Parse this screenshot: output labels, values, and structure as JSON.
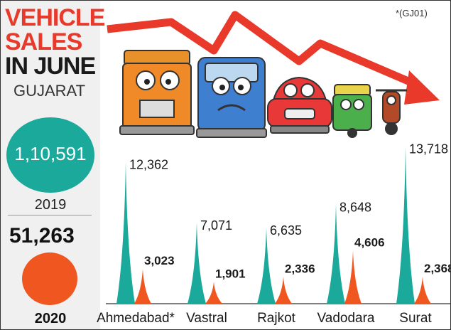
{
  "title": [
    "VEHICLE",
    "SALES",
    "IN JUNE"
  ],
  "region": "GUJARAT",
  "note": "*(GJ01)",
  "totals": {
    "y2019": {
      "year": "2019",
      "value": "1,10,591"
    },
    "y2020": {
      "year": "2020",
      "value": "51,263"
    }
  },
  "colors": {
    "y2019": "#1aa99a",
    "y2020": "#f0561f",
    "title": "#e8392a"
  },
  "illustration": [
    "truck-icon",
    "bus-icon",
    "car-icon",
    "auto-rickshaw-icon",
    "motorcycle-icon",
    "down-trend-arrow-icon"
  ],
  "chart_data": {
    "type": "bar",
    "categories": [
      "Ahmedabad*",
      "Vastral",
      "Rajkot",
      "Vadodara",
      "Surat"
    ],
    "series": [
      {
        "name": "2019",
        "values": [
          12362,
          7071,
          6635,
          8648,
          13718
        ],
        "labels": [
          "12,362",
          "7,071",
          "6,635",
          "8,648",
          "13,718"
        ]
      },
      {
        "name": "2020",
        "values": [
          3023,
          1901,
          2336,
          4606,
          2368
        ],
        "labels": [
          "3,023",
          "1,901",
          "2,336",
          "4,606",
          "2,368"
        ]
      }
    ],
    "ylim": [
      0,
      14000
    ],
    "grid": false,
    "xlabel": "",
    "ylabel": ""
  }
}
